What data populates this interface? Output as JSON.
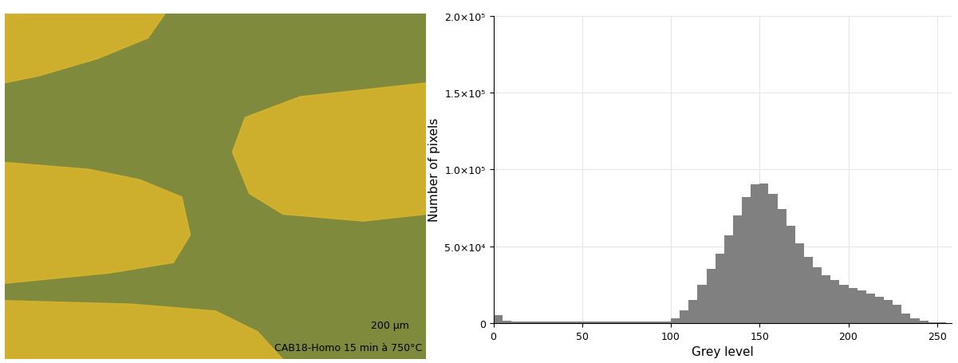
{
  "micrograph": {
    "scale_bar": "200 µm",
    "caption": "CAB18-Homo 15 min à 750°C"
  },
  "chart_data": {
    "type": "histogram",
    "x_label": "Grey level",
    "y_label": "Number of pixels",
    "bins": [
      0,
      5,
      10,
      15,
      20,
      25,
      30,
      35,
      40,
      45,
      50,
      55,
      60,
      65,
      70,
      75,
      80,
      85,
      90,
      95,
      100,
      105,
      110,
      115,
      120,
      125,
      130,
      135,
      140,
      145,
      150,
      155,
      160,
      165,
      170,
      175,
      180,
      185,
      190,
      195,
      200,
      205,
      210,
      215,
      220,
      225,
      230,
      235,
      240,
      245,
      250,
      255
    ],
    "counts": [
      5000,
      1500,
      900,
      800,
      800,
      800,
      800,
      700,
      700,
      700,
      700,
      700,
      700,
      700,
      700,
      700,
      800,
      800,
      900,
      1000,
      3000,
      8000,
      15000,
      25000,
      35000,
      45000,
      57000,
      70000,
      82000,
      90000,
      91000,
      84000,
      74000,
      63000,
      52000,
      43000,
      36000,
      31000,
      28000,
      25000,
      23000,
      21000,
      19000,
      17000,
      15000,
      12000,
      6000,
      3000,
      1500,
      500,
      200
    ],
    "color": "#808080",
    "xlim": [
      0,
      258
    ],
    "xticks": [
      0,
      50,
      100,
      150,
      200,
      250
    ],
    "ylim": [
      0,
      200000
    ],
    "yticks": [
      0,
      {
        "value": 50000,
        "label": "5.0×10⁴"
      },
      {
        "value": 100000,
        "label": "1.0×10⁵"
      },
      {
        "value": 150000,
        "label": "1.5×10⁵"
      },
      {
        "value": 200000,
        "label": "2.0×10⁵"
      }
    ],
    "grid": true
  }
}
